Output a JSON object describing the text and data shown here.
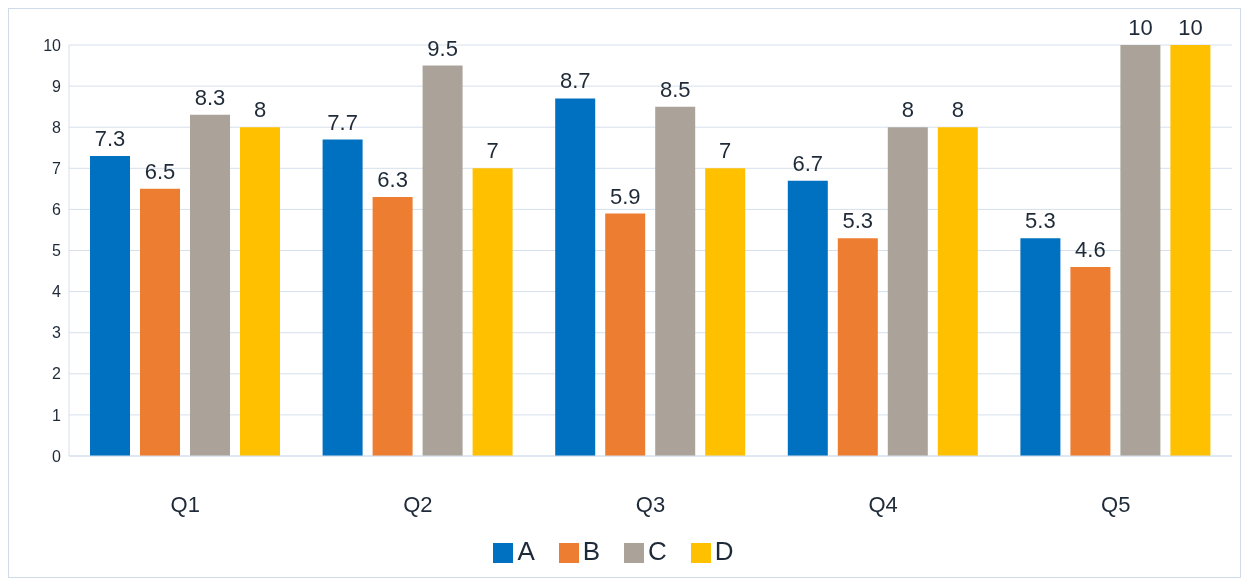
{
  "chart_data": {
    "type": "bar",
    "categories": [
      "Q1",
      "Q2",
      "Q3",
      "Q4",
      "Q5"
    ],
    "series": [
      {
        "name": "A",
        "color": "#0070c0",
        "values": [
          7.3,
          7.7,
          8.7,
          6.7,
          5.3
        ]
      },
      {
        "name": "B",
        "color": "#ed7d31",
        "values": [
          6.5,
          6.3,
          5.9,
          5.3,
          4.6
        ]
      },
      {
        "name": "C",
        "color": "#aba39a",
        "values": [
          8.3,
          9.5,
          8.5,
          8,
          10
        ]
      },
      {
        "name": "D",
        "color": "#ffc000",
        "values": [
          8,
          7,
          7,
          8,
          10
        ]
      }
    ],
    "ylim": [
      0,
      10
    ],
    "yticks": [
      0,
      1,
      2,
      3,
      4,
      5,
      6,
      7,
      8,
      9,
      10
    ],
    "grid": "y",
    "legend": "bottom",
    "data_labels": true
  }
}
